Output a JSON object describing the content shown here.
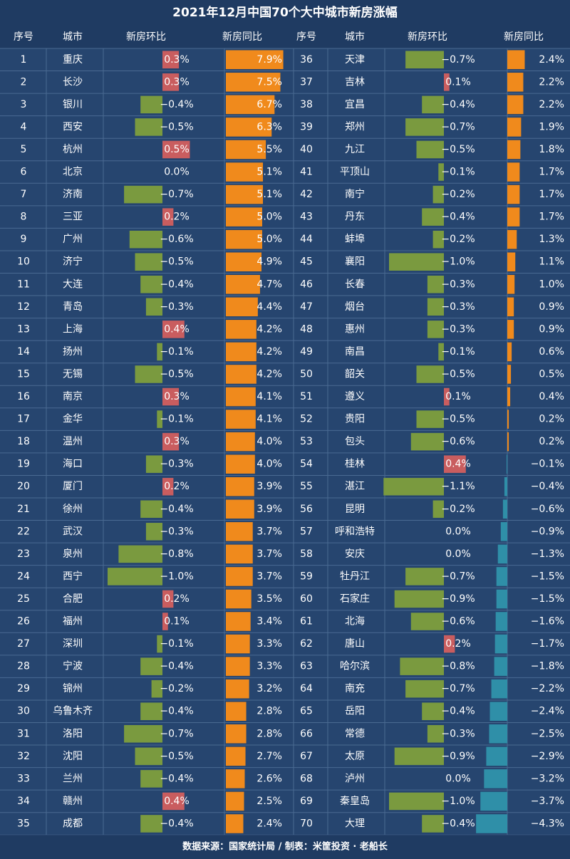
{
  "title": "2021年12月中国70个大中城市新房涨幅",
  "footer": "数据来源：国家统计局 / 制表：米筐投资 · 老船长",
  "headers": [
    "序号",
    "城市",
    "新房环比",
    "新房同比",
    "序号",
    "城市",
    "新房环比",
    "新房同比"
  ],
  "colors": {
    "background": "#26456f",
    "header_bg": "#1f3b62",
    "mom_positive": "#c95d5f",
    "mom_negative": "#7a9a3f",
    "yoy_positive": "#f08a1c",
    "yoy_negative": "#2f8fa8",
    "grid": "#4a6a92",
    "text": "#ffffff"
  },
  "chart_data": {
    "type": "table",
    "title": "2021年12月中国70个大中城市新房涨幅",
    "columns": [
      "序号",
      "城市",
      "新房环比",
      "新房同比"
    ],
    "unit": "%",
    "rows": [
      {
        "rank": 1,
        "city": "重庆",
        "mom": 0.3,
        "yoy": 7.9
      },
      {
        "rank": 2,
        "city": "长沙",
        "mom": 0.3,
        "yoy": 7.5
      },
      {
        "rank": 3,
        "city": "银川",
        "mom": -0.4,
        "yoy": 6.7
      },
      {
        "rank": 4,
        "city": "西安",
        "mom": -0.5,
        "yoy": 6.3
      },
      {
        "rank": 5,
        "city": "杭州",
        "mom": 0.5,
        "yoy": 5.5
      },
      {
        "rank": 6,
        "city": "北京",
        "mom": 0.0,
        "yoy": 5.1
      },
      {
        "rank": 7,
        "city": "济南",
        "mom": -0.7,
        "yoy": 5.1
      },
      {
        "rank": 8,
        "city": "三亚",
        "mom": 0.2,
        "yoy": 5.0
      },
      {
        "rank": 9,
        "city": "广州",
        "mom": -0.6,
        "yoy": 5.0
      },
      {
        "rank": 10,
        "city": "济宁",
        "mom": -0.5,
        "yoy": 4.9
      },
      {
        "rank": 11,
        "city": "大连",
        "mom": -0.4,
        "yoy": 4.7
      },
      {
        "rank": 12,
        "city": "青岛",
        "mom": -0.3,
        "yoy": 4.4
      },
      {
        "rank": 13,
        "city": "上海",
        "mom": 0.4,
        "yoy": 4.2
      },
      {
        "rank": 14,
        "city": "扬州",
        "mom": -0.1,
        "yoy": 4.2
      },
      {
        "rank": 15,
        "city": "无锡",
        "mom": -0.5,
        "yoy": 4.2
      },
      {
        "rank": 16,
        "city": "南京",
        "mom": 0.3,
        "yoy": 4.1
      },
      {
        "rank": 17,
        "city": "金华",
        "mom": -0.1,
        "yoy": 4.1
      },
      {
        "rank": 18,
        "city": "温州",
        "mom": 0.3,
        "yoy": 4.0
      },
      {
        "rank": 19,
        "city": "海口",
        "mom": -0.3,
        "yoy": 4.0
      },
      {
        "rank": 20,
        "city": "厦门",
        "mom": 0.2,
        "yoy": 3.9
      },
      {
        "rank": 21,
        "city": "徐州",
        "mom": -0.4,
        "yoy": 3.9
      },
      {
        "rank": 22,
        "city": "武汉",
        "mom": -0.3,
        "yoy": 3.7
      },
      {
        "rank": 23,
        "city": "泉州",
        "mom": -0.8,
        "yoy": 3.7
      },
      {
        "rank": 24,
        "city": "西宁",
        "mom": -1.0,
        "yoy": 3.7
      },
      {
        "rank": 25,
        "city": "合肥",
        "mom": 0.2,
        "yoy": 3.5
      },
      {
        "rank": 26,
        "city": "福州",
        "mom": 0.1,
        "yoy": 3.4
      },
      {
        "rank": 27,
        "city": "深圳",
        "mom": -0.1,
        "yoy": 3.3
      },
      {
        "rank": 28,
        "city": "宁波",
        "mom": -0.4,
        "yoy": 3.3
      },
      {
        "rank": 29,
        "city": "锦州",
        "mom": -0.2,
        "yoy": 3.2
      },
      {
        "rank": 30,
        "city": "乌鲁木齐",
        "mom": -0.4,
        "yoy": 2.8
      },
      {
        "rank": 31,
        "city": "洛阳",
        "mom": -0.7,
        "yoy": 2.8
      },
      {
        "rank": 32,
        "city": "沈阳",
        "mom": -0.5,
        "yoy": 2.7
      },
      {
        "rank": 33,
        "city": "兰州",
        "mom": -0.4,
        "yoy": 2.6
      },
      {
        "rank": 34,
        "city": "赣州",
        "mom": 0.4,
        "yoy": 2.5
      },
      {
        "rank": 35,
        "city": "成都",
        "mom": -0.4,
        "yoy": 2.4
      },
      {
        "rank": 36,
        "city": "天津",
        "mom": -0.7,
        "yoy": 2.4
      },
      {
        "rank": 37,
        "city": "吉林",
        "mom": 0.1,
        "yoy": 2.2
      },
      {
        "rank": 38,
        "city": "宜昌",
        "mom": -0.4,
        "yoy": 2.2
      },
      {
        "rank": 39,
        "city": "郑州",
        "mom": -0.7,
        "yoy": 1.9
      },
      {
        "rank": 40,
        "city": "九江",
        "mom": -0.5,
        "yoy": 1.8
      },
      {
        "rank": 41,
        "city": "平顶山",
        "mom": -0.1,
        "yoy": 1.7
      },
      {
        "rank": 42,
        "city": "南宁",
        "mom": -0.2,
        "yoy": 1.7
      },
      {
        "rank": 43,
        "city": "丹东",
        "mom": -0.4,
        "yoy": 1.7
      },
      {
        "rank": 44,
        "city": "蚌埠",
        "mom": -0.2,
        "yoy": 1.3
      },
      {
        "rank": 45,
        "city": "襄阳",
        "mom": -1.0,
        "yoy": 1.1
      },
      {
        "rank": 46,
        "city": "长春",
        "mom": -0.3,
        "yoy": 1.0
      },
      {
        "rank": 47,
        "city": "烟台",
        "mom": -0.3,
        "yoy": 0.9
      },
      {
        "rank": 48,
        "city": "惠州",
        "mom": -0.3,
        "yoy": 0.9
      },
      {
        "rank": 49,
        "city": "南昌",
        "mom": -0.1,
        "yoy": 0.6
      },
      {
        "rank": 50,
        "city": "韶关",
        "mom": -0.5,
        "yoy": 0.5
      },
      {
        "rank": 51,
        "city": "遵义",
        "mom": 0.1,
        "yoy": 0.4
      },
      {
        "rank": 52,
        "city": "贵阳",
        "mom": -0.5,
        "yoy": 0.2
      },
      {
        "rank": 53,
        "city": "包头",
        "mom": -0.6,
        "yoy": 0.2
      },
      {
        "rank": 54,
        "city": "桂林",
        "mom": 0.4,
        "yoy": -0.1
      },
      {
        "rank": 55,
        "city": "湛江",
        "mom": -1.1,
        "yoy": -0.4
      },
      {
        "rank": 56,
        "city": "昆明",
        "mom": -0.2,
        "yoy": -0.6
      },
      {
        "rank": 57,
        "city": "呼和浩特",
        "mom": 0.0,
        "yoy": -0.9
      },
      {
        "rank": 58,
        "city": "安庆",
        "mom": 0.0,
        "yoy": -1.3
      },
      {
        "rank": 59,
        "city": "牡丹江",
        "mom": -0.7,
        "yoy": -1.5
      },
      {
        "rank": 60,
        "city": "石家庄",
        "mom": -0.9,
        "yoy": -1.5
      },
      {
        "rank": 61,
        "city": "北海",
        "mom": -0.6,
        "yoy": -1.6
      },
      {
        "rank": 62,
        "city": "唐山",
        "mom": 0.2,
        "yoy": -1.7
      },
      {
        "rank": 63,
        "city": "哈尔滨",
        "mom": -0.8,
        "yoy": -1.8
      },
      {
        "rank": 64,
        "city": "南充",
        "mom": -0.7,
        "yoy": -2.2
      },
      {
        "rank": 65,
        "city": "岳阳",
        "mom": -0.4,
        "yoy": -2.4
      },
      {
        "rank": 66,
        "city": "常德",
        "mom": -0.3,
        "yoy": -2.5
      },
      {
        "rank": 67,
        "city": "太原",
        "mom": -0.9,
        "yoy": -2.9
      },
      {
        "rank": 68,
        "city": "泸州",
        "mom": 0.0,
        "yoy": -3.2
      },
      {
        "rank": 69,
        "city": "秦皇岛",
        "mom": -1.0,
        "yoy": -3.7
      },
      {
        "rank": 70,
        "city": "大理",
        "mom": -0.4,
        "yoy": -4.3
      }
    ]
  }
}
